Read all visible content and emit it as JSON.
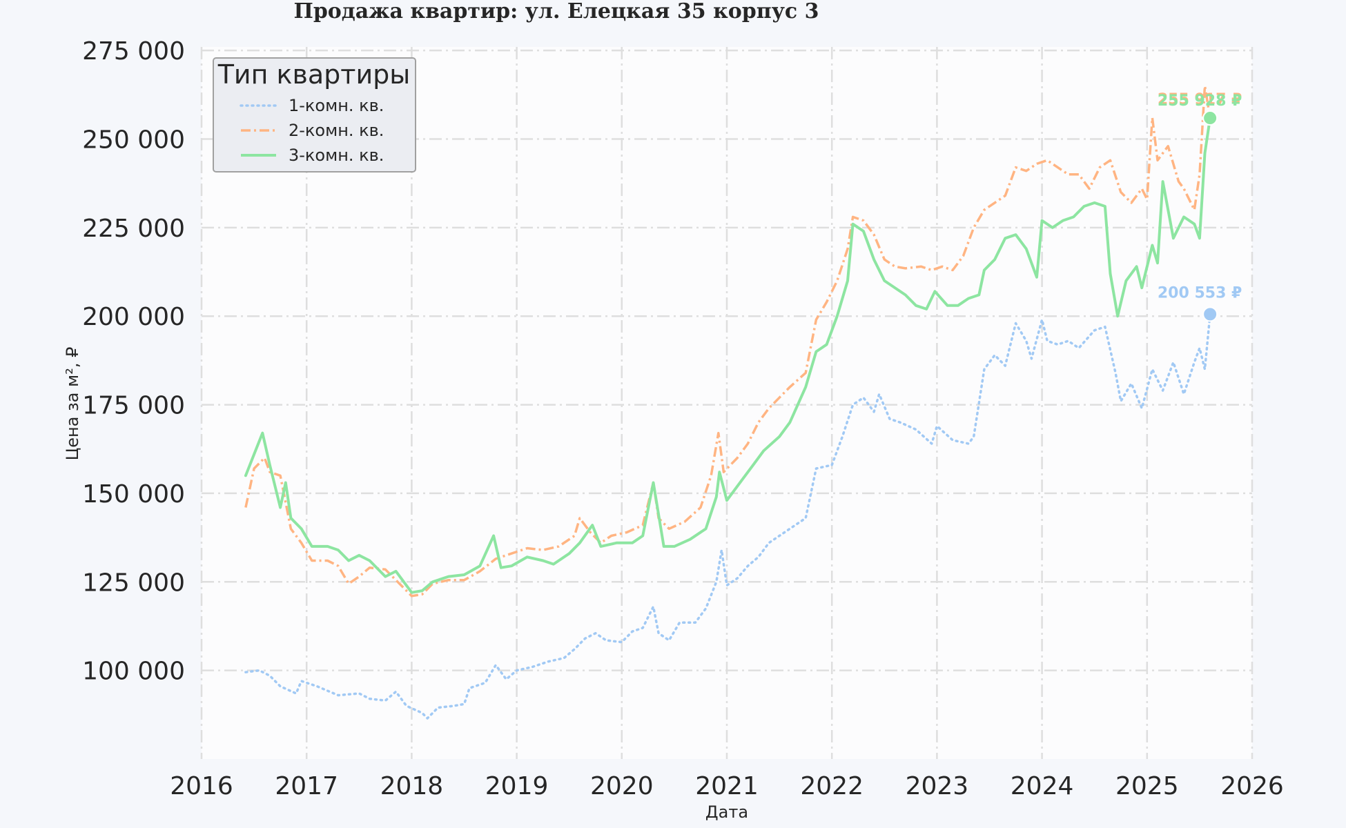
{
  "colors": {
    "figure_bg": "#f5f7fb",
    "plot_bg": "#fcfcfd",
    "grid": "#dedede",
    "text": "#262626",
    "one_room": "#a1c9f4",
    "two_room": "#ffb482",
    "three_room": "#8de5a1"
  },
  "chart_data": {
    "type": "line",
    "title": "Продажа квартир: ул. Елецкая 35 корпус 3",
    "xlabel": "Дата",
    "ylabel": "Цена за м², ₽",
    "xlim": [
      2016.0,
      2026.0
    ],
    "ylim": [
      75000,
      276000
    ],
    "x_ticks": [
      2016,
      2017,
      2018,
      2019,
      2020,
      2021,
      2022,
      2023,
      2024,
      2025,
      2026
    ],
    "x_tick_labels": [
      "2016",
      "2017",
      "2018",
      "2019",
      "2020",
      "2021",
      "2022",
      "2023",
      "2024",
      "2025",
      "2026"
    ],
    "y_ticks": [
      100000,
      125000,
      150000,
      175000,
      200000,
      225000,
      250000,
      275000
    ],
    "y_tick_labels": [
      "100 000",
      "125 000",
      "150 000",
      "175 000",
      "200 000",
      "225 000",
      "250 000",
      "275 000"
    ],
    "grid": true,
    "legend": {
      "title": "Тип квартиры",
      "placement": "top-left"
    },
    "series": [
      {
        "name": "1-комн. кв.",
        "style": "dotted",
        "color_key": "one_room",
        "end_label": "200 553 ₽",
        "end_value": 200553,
        "points": [
          [
            2016.42,
            99500
          ],
          [
            2016.55,
            100000
          ],
          [
            2016.65,
            98500
          ],
          [
            2016.75,
            95500
          ],
          [
            2016.9,
            93500
          ],
          [
            2016.95,
            97000
          ],
          [
            2017.1,
            95500
          ],
          [
            2017.3,
            93000
          ],
          [
            2017.5,
            93500
          ],
          [
            2017.6,
            92000
          ],
          [
            2017.75,
            91500
          ],
          [
            2017.85,
            94000
          ],
          [
            2017.95,
            90000
          ],
          [
            2018.1,
            88000
          ],
          [
            2018.15,
            86500
          ],
          [
            2018.25,
            89500
          ],
          [
            2018.4,
            90000
          ],
          [
            2018.5,
            90500
          ],
          [
            2018.55,
            95000
          ],
          [
            2018.7,
            96500
          ],
          [
            2018.8,
            101500
          ],
          [
            2018.9,
            97500
          ],
          [
            2019.0,
            100000
          ],
          [
            2019.15,
            101000
          ],
          [
            2019.3,
            102500
          ],
          [
            2019.45,
            103500
          ],
          [
            2019.55,
            106000
          ],
          [
            2019.65,
            109000
          ],
          [
            2019.75,
            110500
          ],
          [
            2019.85,
            108500
          ],
          [
            2020.0,
            108000
          ],
          [
            2020.1,
            111000
          ],
          [
            2020.2,
            112000
          ],
          [
            2020.3,
            118000
          ],
          [
            2020.35,
            110500
          ],
          [
            2020.45,
            108500
          ],
          [
            2020.55,
            113500
          ],
          [
            2020.7,
            113500
          ],
          [
            2020.8,
            117500
          ],
          [
            2020.9,
            125000
          ],
          [
            2020.95,
            134000
          ],
          [
            2021.0,
            124000
          ],
          [
            2021.1,
            126000
          ],
          [
            2021.2,
            129500
          ],
          [
            2021.3,
            132000
          ],
          [
            2021.4,
            136000
          ],
          [
            2021.6,
            140000
          ],
          [
            2021.75,
            143000
          ],
          [
            2021.8,
            150000
          ],
          [
            2021.85,
            157000
          ],
          [
            2022.0,
            158000
          ],
          [
            2022.1,
            166000
          ],
          [
            2022.2,
            175000
          ],
          [
            2022.3,
            177000
          ],
          [
            2022.4,
            173000
          ],
          [
            2022.45,
            178000
          ],
          [
            2022.55,
            171000
          ],
          [
            2022.65,
            170000
          ],
          [
            2022.8,
            168000
          ],
          [
            2022.95,
            164000
          ],
          [
            2023.0,
            169000
          ],
          [
            2023.15,
            165000
          ],
          [
            2023.3,
            164000
          ],
          [
            2023.35,
            166000
          ],
          [
            2023.45,
            185000
          ],
          [
            2023.55,
            189000
          ],
          [
            2023.65,
            186000
          ],
          [
            2023.75,
            198000
          ],
          [
            2023.85,
            193000
          ],
          [
            2023.9,
            188000
          ],
          [
            2024.0,
            199000
          ],
          [
            2024.05,
            193000
          ],
          [
            2024.15,
            192000
          ],
          [
            2024.25,
            193000
          ],
          [
            2024.35,
            191000
          ],
          [
            2024.5,
            196000
          ],
          [
            2024.6,
            197000
          ],
          [
            2024.7,
            184000
          ],
          [
            2024.75,
            176000
          ],
          [
            2024.85,
            181000
          ],
          [
            2024.95,
            174000
          ],
          [
            2025.05,
            185000
          ],
          [
            2025.15,
            179000
          ],
          [
            2025.25,
            187000
          ],
          [
            2025.35,
            178000
          ],
          [
            2025.45,
            187000
          ],
          [
            2025.5,
            191000
          ],
          [
            2025.55,
            185000
          ],
          [
            2025.6,
            200553
          ]
        ]
      },
      {
        "name": "2-комн. кв.",
        "style": "dashdot",
        "color_key": "two_room",
        "end_label": "255 917 ₽",
        "end_value": 255917,
        "points": [
          [
            2016.42,
            146000
          ],
          [
            2016.5,
            157000
          ],
          [
            2016.6,
            160000
          ],
          [
            2016.65,
            156000
          ],
          [
            2016.75,
            155000
          ],
          [
            2016.85,
            140000
          ],
          [
            2016.95,
            136000
          ],
          [
            2017.05,
            131000
          ],
          [
            2017.2,
            131000
          ],
          [
            2017.3,
            129500
          ],
          [
            2017.4,
            124500
          ],
          [
            2017.5,
            126500
          ],
          [
            2017.6,
            129000
          ],
          [
            2017.75,
            128500
          ],
          [
            2017.9,
            124000
          ],
          [
            2018.0,
            121000
          ],
          [
            2018.1,
            121500
          ],
          [
            2018.2,
            124500
          ],
          [
            2018.35,
            125500
          ],
          [
            2018.5,
            125500
          ],
          [
            2018.65,
            128000
          ],
          [
            2018.8,
            131500
          ],
          [
            2018.95,
            133000
          ],
          [
            2019.1,
            134500
          ],
          [
            2019.25,
            134000
          ],
          [
            2019.4,
            135000
          ],
          [
            2019.55,
            138000
          ],
          [
            2019.6,
            143000
          ],
          [
            2019.7,
            139000
          ],
          [
            2019.8,
            136000
          ],
          [
            2019.9,
            138000
          ],
          [
            2020.05,
            139000
          ],
          [
            2020.2,
            141000
          ],
          [
            2020.3,
            153000
          ],
          [
            2020.35,
            143000
          ],
          [
            2020.45,
            140000
          ],
          [
            2020.6,
            142000
          ],
          [
            2020.75,
            146000
          ],
          [
            2020.85,
            155000
          ],
          [
            2020.92,
            167000
          ],
          [
            2020.97,
            156000
          ],
          [
            2021.1,
            160000
          ],
          [
            2021.2,
            164000
          ],
          [
            2021.3,
            170000
          ],
          [
            2021.4,
            174000
          ],
          [
            2021.5,
            177000
          ],
          [
            2021.6,
            180000
          ],
          [
            2021.75,
            184000
          ],
          [
            2021.85,
            199000
          ],
          [
            2021.95,
            204000
          ],
          [
            2022.05,
            210000
          ],
          [
            2022.15,
            219000
          ],
          [
            2022.2,
            228000
          ],
          [
            2022.3,
            227000
          ],
          [
            2022.4,
            223000
          ],
          [
            2022.5,
            216000
          ],
          [
            2022.6,
            214000
          ],
          [
            2022.7,
            213500
          ],
          [
            2022.85,
            214000
          ],
          [
            2022.95,
            213000
          ],
          [
            2023.05,
            214000
          ],
          [
            2023.15,
            213000
          ],
          [
            2023.25,
            217000
          ],
          [
            2023.35,
            225000
          ],
          [
            2023.45,
            230000
          ],
          [
            2023.55,
            232000
          ],
          [
            2023.65,
            234000
          ],
          [
            2023.75,
            242000
          ],
          [
            2023.85,
            241000
          ],
          [
            2023.95,
            243000
          ],
          [
            2024.05,
            244000
          ],
          [
            2024.15,
            242000
          ],
          [
            2024.25,
            240000
          ],
          [
            2024.35,
            240000
          ],
          [
            2024.45,
            236000
          ],
          [
            2024.55,
            242000
          ],
          [
            2024.65,
            244000
          ],
          [
            2024.75,
            235000
          ],
          [
            2024.85,
            232000
          ],
          [
            2024.95,
            236000
          ],
          [
            2025.0,
            233000
          ],
          [
            2025.05,
            256000
          ],
          [
            2025.1,
            244000
          ],
          [
            2025.2,
            248000
          ],
          [
            2025.3,
            238000
          ],
          [
            2025.35,
            236000
          ],
          [
            2025.45,
            230000
          ],
          [
            2025.5,
            240000
          ],
          [
            2025.55,
            265000
          ],
          [
            2025.6,
            255917
          ]
        ]
      },
      {
        "name": "3-комн. кв.",
        "style": "solid",
        "color_key": "three_room",
        "end_label": "255 928 ₽",
        "end_value": 255928,
        "points": [
          [
            2016.42,
            155000
          ],
          [
            2016.5,
            161000
          ],
          [
            2016.58,
            167000
          ],
          [
            2016.65,
            158000
          ],
          [
            2016.75,
            146000
          ],
          [
            2016.8,
            153000
          ],
          [
            2016.85,
            143000
          ],
          [
            2016.95,
            140000
          ],
          [
            2017.05,
            135000
          ],
          [
            2017.2,
            135000
          ],
          [
            2017.3,
            134000
          ],
          [
            2017.4,
            131000
          ],
          [
            2017.5,
            132500
          ],
          [
            2017.6,
            131000
          ],
          [
            2017.75,
            126500
          ],
          [
            2017.85,
            128000
          ],
          [
            2018.0,
            122000
          ],
          [
            2018.1,
            122500
          ],
          [
            2018.2,
            125000
          ],
          [
            2018.35,
            126500
          ],
          [
            2018.5,
            127000
          ],
          [
            2018.65,
            129500
          ],
          [
            2018.78,
            138000
          ],
          [
            2018.85,
            129000
          ],
          [
            2018.95,
            129500
          ],
          [
            2019.1,
            132000
          ],
          [
            2019.25,
            131000
          ],
          [
            2019.35,
            130000
          ],
          [
            2019.5,
            133000
          ],
          [
            2019.6,
            136000
          ],
          [
            2019.72,
            141000
          ],
          [
            2019.8,
            135000
          ],
          [
            2019.95,
            136000
          ],
          [
            2020.1,
            136000
          ],
          [
            2020.2,
            138000
          ],
          [
            2020.3,
            153000
          ],
          [
            2020.4,
            135000
          ],
          [
            2020.5,
            135000
          ],
          [
            2020.65,
            137000
          ],
          [
            2020.8,
            140000
          ],
          [
            2020.9,
            149000
          ],
          [
            2020.93,
            156000
          ],
          [
            2021.0,
            148000
          ],
          [
            2021.15,
            154000
          ],
          [
            2021.25,
            158000
          ],
          [
            2021.35,
            162000
          ],
          [
            2021.5,
            166000
          ],
          [
            2021.6,
            170000
          ],
          [
            2021.75,
            180000
          ],
          [
            2021.85,
            190000
          ],
          [
            2021.95,
            192000
          ],
          [
            2022.05,
            200000
          ],
          [
            2022.15,
            210000
          ],
          [
            2022.2,
            226000
          ],
          [
            2022.3,
            224000
          ],
          [
            2022.4,
            216000
          ],
          [
            2022.5,
            210000
          ],
          [
            2022.6,
            208000
          ],
          [
            2022.7,
            206000
          ],
          [
            2022.8,
            203000
          ],
          [
            2022.9,
            202000
          ],
          [
            2022.98,
            207000
          ],
          [
            2023.1,
            203000
          ],
          [
            2023.2,
            203000
          ],
          [
            2023.3,
            205000
          ],
          [
            2023.4,
            206000
          ],
          [
            2023.45,
            213000
          ],
          [
            2023.55,
            216000
          ],
          [
            2023.65,
            222000
          ],
          [
            2023.75,
            223000
          ],
          [
            2023.85,
            219000
          ],
          [
            2023.95,
            211000
          ],
          [
            2024.0,
            227000
          ],
          [
            2024.1,
            225000
          ],
          [
            2024.2,
            227000
          ],
          [
            2024.3,
            228000
          ],
          [
            2024.4,
            231000
          ],
          [
            2024.5,
            232000
          ],
          [
            2024.6,
            231000
          ],
          [
            2024.65,
            212000
          ],
          [
            2024.72,
            200000
          ],
          [
            2024.8,
            210000
          ],
          [
            2024.9,
            214000
          ],
          [
            2024.95,
            208000
          ],
          [
            2025.05,
            220000
          ],
          [
            2025.1,
            215000
          ],
          [
            2025.15,
            238000
          ],
          [
            2025.25,
            222000
          ],
          [
            2025.35,
            228000
          ],
          [
            2025.45,
            226000
          ],
          [
            2025.5,
            222000
          ],
          [
            2025.55,
            246000
          ],
          [
            2025.6,
            255928
          ]
        ]
      }
    ]
  }
}
